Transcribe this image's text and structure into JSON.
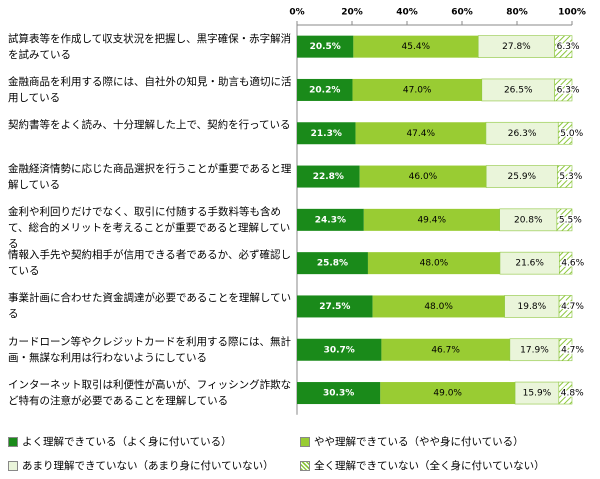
{
  "chart_data": {
    "type": "stacked-barh",
    "categories": [
      "試算表等を作成して収支状況を把握し、黒字確保・赤字解消を試みている",
      "金融商品を利用する際には、自社外の知見・助言も適切に活用している",
      "契約書等をよく読み、十分理解した上で、契約を行っている",
      "金融経済情勢に応じた商品選択を行うことが重要であると理解している",
      "金利や利回りだけでなく、取引に付随する手数料等も含めて、総合的メリットを考えることが重要であると理解している",
      "情報入手先や契約相手が信用できる者であるか、必ず確認している",
      "事業計画に合わせた資金調達が必要であることを理解している",
      "カードローン等やクレジットカードを利用する際には、無計画・無謀な利用は行わないようにしている",
      "インターネット取引は利便性が高いが、フィッシング詐欺など特有の注意が必要であることを理解している"
    ],
    "series": [
      {
        "name": "よく理解できている（よく身に付いている）",
        "color": "#1a8a1a",
        "values": [
          20.5,
          20.2,
          21.3,
          22.8,
          24.3,
          25.8,
          27.5,
          30.7,
          30.3
        ],
        "value_labels": [
          "20.5%",
          "20.2%",
          "21.3%",
          "22.8%",
          "24.3%",
          "25.8%",
          "27.5%",
          "30.7%",
          "30.3%"
        ]
      },
      {
        "name": "やや理解できている（やや身に付いている）",
        "color": "#99cc33",
        "values": [
          45.4,
          47.0,
          47.4,
          46.0,
          49.4,
          48.0,
          48.0,
          46.7,
          49.0
        ],
        "value_labels": [
          "45.4%",
          "47.0%",
          "47.4%",
          "46.0%",
          "49.4%",
          "48.0%",
          "48.0%",
          "46.7%",
          "49.0%"
        ]
      },
      {
        "name": "あまり理解できていない（あまり身に付いていない）",
        "color": "#eaf5da",
        "values": [
          27.8,
          26.5,
          26.3,
          25.9,
          20.8,
          21.6,
          19.8,
          17.9,
          15.9
        ],
        "value_labels": [
          "27.8%",
          "26.5%",
          "26.3%",
          "25.9%",
          "20.8%",
          "21.6%",
          "19.8%",
          "17.9%",
          "15.9%"
        ]
      },
      {
        "name": "全く理解できていない（全く身に付いていない）",
        "color": "#8dc63f",
        "values": [
          6.3,
          6.3,
          5.0,
          5.3,
          5.5,
          4.6,
          4.7,
          4.7,
          4.8
        ],
        "value_labels": [
          "6.3%",
          "6.3%",
          "5.0%",
          "5.3%",
          "5.5%",
          "4.6%",
          "4.7%",
          "4.7%",
          "4.8%"
        ]
      }
    ],
    "xlim": [
      0,
      100
    ],
    "xticks": [
      {
        "value": 0,
        "label": "0%"
      },
      {
        "value": 20,
        "label": "20%"
      },
      {
        "value": 40,
        "label": "40%"
      },
      {
        "value": 60,
        "label": "60%"
      },
      {
        "value": 80,
        "label": "80%"
      },
      {
        "value": 100,
        "label": "100%"
      }
    ]
  }
}
